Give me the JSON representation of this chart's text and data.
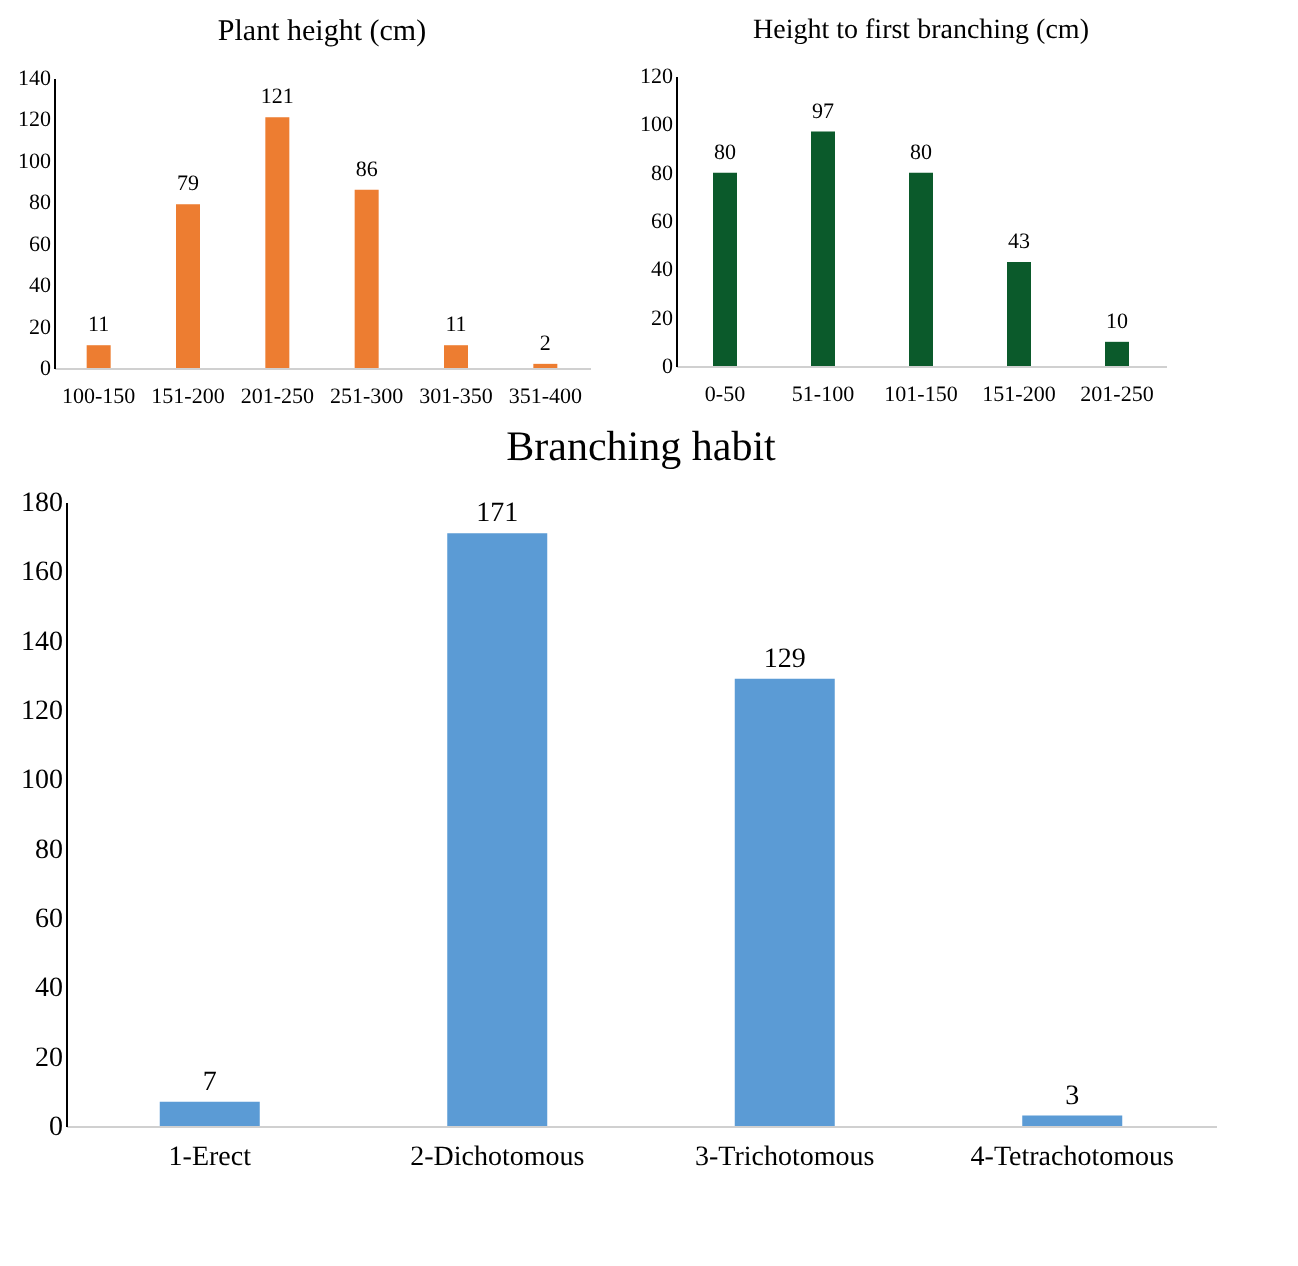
{
  "chart_data": [
    {
      "type": "bar",
      "title": "Plant height (cm)",
      "categories": [
        "100-150",
        "151-200",
        "201-250",
        "251-300",
        "301-350",
        "351-400"
      ],
      "values": [
        11,
        79,
        121,
        86,
        11,
        2
      ],
      "color": "#ed7d31",
      "ylim": [
        0,
        140
      ],
      "yticks": [
        0,
        20,
        40,
        60,
        80,
        100,
        120,
        140
      ],
      "data_labels": true
    },
    {
      "type": "bar",
      "title": "Height to first branching (cm)",
      "categories": [
        "0-50",
        "51-100",
        "101-150",
        "151-200",
        "201-250"
      ],
      "values": [
        80,
        97,
        80,
        43,
        10
      ],
      "color": "#0b5a2b",
      "ylim": [
        0,
        120
      ],
      "yticks": [
        0,
        20,
        40,
        60,
        80,
        100,
        120
      ],
      "data_labels": true
    },
    {
      "type": "bar",
      "title": "Branching habit",
      "categories": [
        "1-Erect",
        "2-Dichotomous",
        "3-Trichotomous",
        "4-Tetrachotomous"
      ],
      "values": [
        7,
        171,
        129,
        3
      ],
      "color": "#5b9bd5",
      "ylim": [
        0,
        180
      ],
      "yticks": [
        0,
        20,
        40,
        60,
        80,
        100,
        120,
        140,
        160,
        180
      ],
      "data_labels": true
    }
  ]
}
